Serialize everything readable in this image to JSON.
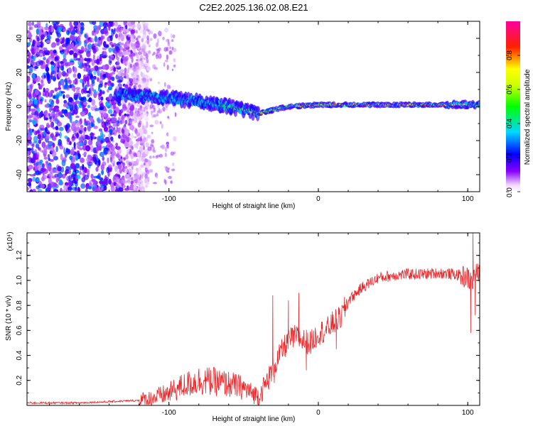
{
  "title": "C2E2.2025.136.02.08.E21",
  "chart_data": [
    {
      "type": "heatmap",
      "title": "C2E2.2025.136.02.08.E21",
      "xlabel": "Height of straight line (km)",
      "ylabel": "Frequency (Hz)",
      "xlim": [
        -195,
        108
      ],
      "ylim": [
        -50,
        50
      ],
      "xticks": [
        -100,
        0,
        100
      ],
      "xtick_labels": [
        "-100",
        "0",
        "100"
      ],
      "yticks": [
        -40,
        -20,
        0,
        20,
        40
      ],
      "ytick_labels": [
        "-40",
        "-20",
        "0",
        "20",
        "40"
      ],
      "colorbar": {
        "label": "Normalized spectral amplitude",
        "range": [
          0,
          1
        ],
        "ticks": [
          0.0,
          0.2,
          0.4,
          0.6,
          0.8
        ],
        "tick_labels": [
          "0.0",
          "0.2",
          "0.4",
          "0.6",
          "0.8"
        ],
        "colormap": "rainbow (white-violet-blue-cyan-green-yellow-red-magenta)"
      },
      "ridge": {
        "description": "frequency of the dominant signal band versus height",
        "x": [
          -135,
          -120,
          -100,
          -80,
          -60,
          -50,
          -40,
          -30,
          -20,
          -10,
          0,
          20,
          40,
          60,
          80,
          90,
          100,
          108
        ],
        "y": [
          7,
          6,
          5,
          3,
          0,
          -2,
          -4,
          -2,
          0,
          0.5,
          1,
          1,
          1,
          1,
          1,
          1,
          1,
          1
        ],
        "peak_amplitude": [
          0.25,
          0.35,
          0.4,
          0.45,
          0.55,
          0.75,
          0.85,
          0.8,
          0.85,
          0.9,
          0.9,
          0.95,
          0.95,
          0.95,
          0.95,
          0.8,
          0.7,
          0.6
        ]
      },
      "noise_region": {
        "x_range": [
          -195,
          -125
        ],
        "amplitude": [
          0.05,
          0.3
        ]
      }
    },
    {
      "type": "line",
      "title": "",
      "xlabel": "Height of straight line (km)",
      "ylabel": "SNR (10 * v/v)",
      "scale_label": "(x10⁴)",
      "scale_factor": 10000,
      "xlim": [
        -195,
        108
      ],
      "ylim": [
        0,
        1.38
      ],
      "xticks": [
        -100,
        0,
        100
      ],
      "xtick_labels": [
        "-100",
        "0",
        "100"
      ],
      "yticks": [
        0.2,
        0.4,
        0.6,
        0.8,
        1.0,
        1.2
      ],
      "ytick_labels": [
        "0.2",
        "0.4",
        "0.6",
        "0.8",
        "1.0",
        "1.2"
      ],
      "series": [
        {
          "color": "#e8272b",
          "x": [
            -195,
            -180,
            -160,
            -140,
            -120,
            -110,
            -100,
            -90,
            -80,
            -70,
            -60,
            -50,
            -45,
            -40,
            -36,
            -30,
            -25,
            -20,
            -15,
            -10,
            -5,
            0,
            5,
            10,
            15,
            20,
            30,
            40,
            50,
            60,
            70,
            80,
            90,
            95,
            100,
            103,
            105,
            108
          ],
          "y": [
            0.02,
            0.02,
            0.02,
            0.03,
            0.04,
            0.06,
            0.1,
            0.16,
            0.2,
            0.19,
            0.17,
            0.14,
            0.1,
            0.08,
            0.15,
            0.3,
            0.42,
            0.52,
            0.55,
            0.52,
            0.5,
            0.58,
            0.6,
            0.66,
            0.7,
            0.84,
            0.95,
            1.02,
            1.04,
            1.05,
            1.05,
            1.06,
            1.05,
            1.04,
            1.02,
            0.98,
            1.06,
            1.04
          ],
          "spikes": [
            {
              "x": -30.5,
              "y": 0.88
            },
            {
              "x": -29.5,
              "y": 0.18
            },
            {
              "x": -20,
              "y": 0.84
            },
            {
              "x": -13,
              "y": 0.9
            },
            {
              "x": -8,
              "y": 0.28
            },
            {
              "x": 7,
              "y": 0.58
            },
            {
              "x": 12,
              "y": 0.45
            },
            {
              "x": 102,
              "y": 0.58
            },
            {
              "x": 103.5,
              "y": 1.38
            },
            {
              "x": 105,
              "y": 0.72
            }
          ],
          "noise_amplitude": [
            0.006,
            0.01,
            0.04,
            0.09,
            0.1,
            0.05
          ]
        }
      ]
    }
  ]
}
